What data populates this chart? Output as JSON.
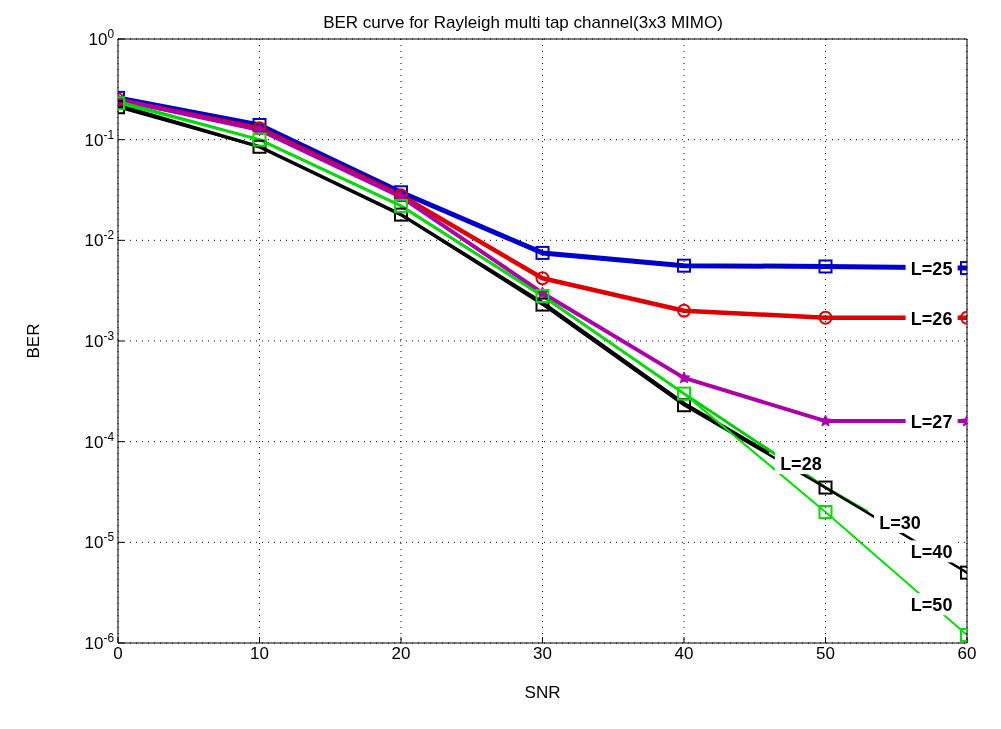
{
  "chart_data": {
    "type": "line",
    "title": "BER curve for Rayleigh multi tap channel(3x3 MIMO)",
    "xlabel": "SNR",
    "ylabel": "BER",
    "log": "y",
    "grid": true,
    "line_style": "solid",
    "xlim": [
      0,
      60
    ],
    "xticks": [
      0,
      10,
      20,
      30,
      40,
      50,
      60
    ],
    "ylim": [
      1e-06,
      1
    ],
    "yticks": [
      {
        "value": 1e-06,
        "label": "10$^{-6}$"
      },
      {
        "value": 1e-05,
        "label": "10$^{-5}$"
      },
      {
        "value": 0.0001,
        "label": "10$^{-4}$"
      },
      {
        "value": 0.001,
        "label": "10$^{-3}$"
      },
      {
        "value": 0.01,
        "label": "10$^{-2}$"
      },
      {
        "value": 0.1,
        "label": "10$^{-1}$"
      },
      {
        "value": 1,
        "label": "10$^{0}$"
      }
    ],
    "series": [
      {
        "name": "L=25",
        "color": "#0000cc",
        "marker": "square",
        "x": [
          0,
          10,
          20,
          30,
          40,
          50,
          60
        ],
        "values": [
          0.26,
          0.14,
          0.03,
          0.0075,
          0.0056,
          0.0055,
          0.0053
        ]
      },
      {
        "name": "L=26",
        "color": "#dd0000",
        "marker": "circle",
        "x": [
          0,
          10,
          20,
          30,
          40,
          50,
          60
        ],
        "values": [
          0.25,
          0.13,
          0.028,
          0.0042,
          0.002,
          0.0017,
          0.0017
        ]
      },
      {
        "name": "L=27",
        "color": "#aa00aa",
        "marker": "star",
        "x": [
          0,
          10,
          20,
          30,
          40,
          50,
          60
        ],
        "values": [
          0.25,
          0.125,
          0.027,
          0.003,
          0.00043,
          0.00016,
          0.00016
        ]
      },
      {
        "name": "L=28",
        "color": "#000000",
        "marker": "none",
        "x": [
          0,
          10,
          20,
          30,
          40,
          46
        ],
        "values": [
          0.22,
          0.085,
          0.018,
          0.0024,
          0.00024,
          7.7e-05
        ]
      },
      {
        "name": "L=30",
        "color": "#00cc00",
        "marker": "none",
        "x": [
          0,
          10,
          20,
          30,
          40,
          50,
          53
        ],
        "values": [
          0.24,
          0.1,
          0.022,
          0.0028,
          0.0003,
          3.5e-05,
          2e-05
        ]
      },
      {
        "name": "L=40",
        "color": "#000000",
        "marker": "square",
        "x": [
          0,
          10,
          20,
          30,
          40,
          50,
          60
        ],
        "values": [
          0.21,
          0.085,
          0.018,
          0.0023,
          0.00023,
          3.5e-05,
          5e-06
        ]
      },
      {
        "name": "L=50",
        "color": "#00dd00",
        "marker": "square",
        "x": [
          0,
          10,
          20,
          30,
          40,
          50,
          60
        ],
        "values": [
          0.23,
          0.1,
          0.022,
          0.0028,
          0.0003,
          2e-05,
          1.2e-06
        ]
      }
    ]
  }
}
